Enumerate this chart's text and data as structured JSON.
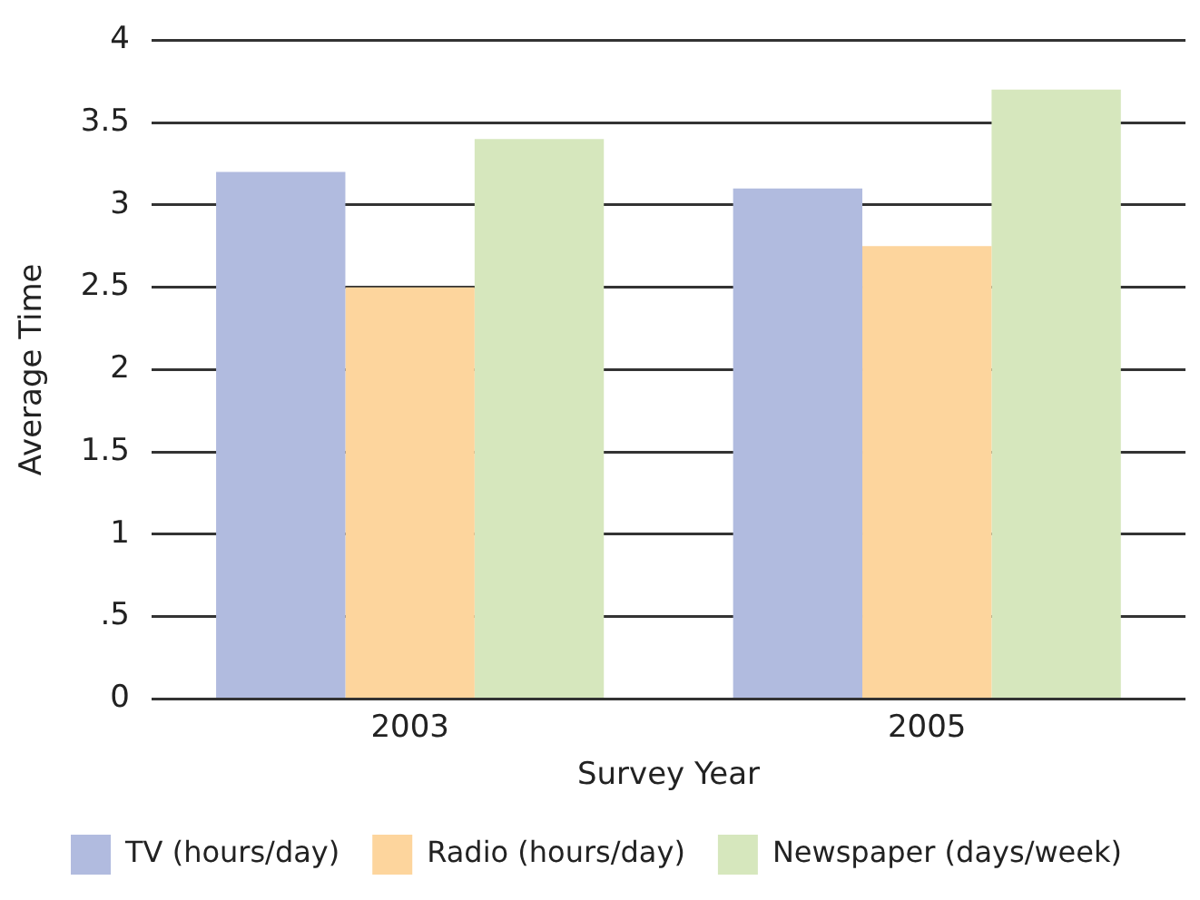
{
  "chart_data": {
    "type": "bar",
    "xlabel": "Survey Year",
    "ylabel": "Average Time",
    "categories": [
      "2003",
      "2005"
    ],
    "series": [
      {
        "name": "TV (hours/day)",
        "color": "#b1bbdf",
        "values": [
          3.2,
          3.1
        ]
      },
      {
        "name": "Radio (hours/day)",
        "color": "#fdd59d",
        "values": [
          2.5,
          2.75
        ]
      },
      {
        "name": "Newspaper (days/week)",
        "color": "#d6e7bd",
        "values": [
          3.4,
          3.7
        ]
      }
    ],
    "ylim": [
      0,
      4
    ],
    "yticks": [
      0,
      {
        "value": 0.5,
        "label": ".5"
      },
      1,
      1.5,
      2,
      2.5,
      3,
      3.5,
      4
    ],
    "grid": "y",
    "legend": "bottom"
  }
}
